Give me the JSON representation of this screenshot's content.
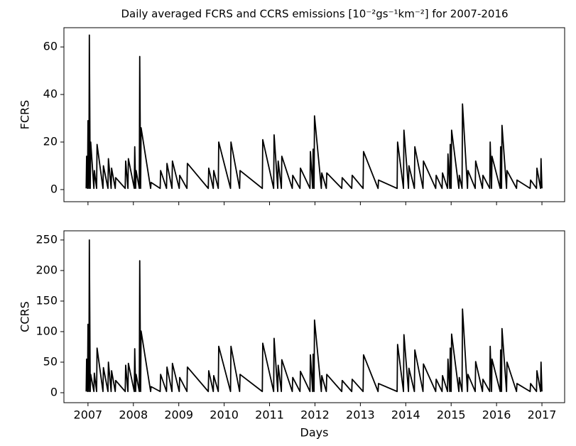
{
  "chart_data": [
    {
      "type": "line",
      "title": "Daily averaged FCRS and CCRS emissions [10⁻²gs⁻¹km⁻²] for 2007-2016",
      "ylabel": "FCRS",
      "color": "#000000",
      "xlim": [
        2006.47,
        2017.5
      ],
      "xticks": [
        2007,
        2008,
        2009,
        2010,
        2011,
        2012,
        2013,
        2014,
        2015,
        2016,
        2017
      ],
      "ylim": [
        -5.1,
        68.1
      ],
      "yticks": [
        0,
        20,
        40,
        60
      ],
      "x": [
        2006.96,
        2006.97,
        2006.99,
        2007.0,
        2007.02,
        2007.03,
        2007.05,
        2007.06,
        2007.13,
        2007.14,
        2007.19,
        2007.2,
        2007.33,
        2007.34,
        2007.44,
        2007.45,
        2007.51,
        2007.52,
        2007.6,
        2007.61,
        2007.82,
        2007.83,
        2007.88,
        2007.89,
        2008.02,
        2008.03,
        2008.05,
        2008.06,
        2008.13,
        2008.14,
        2008.16,
        2008.17,
        2008.38,
        2008.39,
        2008.59,
        2008.6,
        2008.73,
        2008.74,
        2008.85,
        2008.86,
        2009.01,
        2009.02,
        2009.18,
        2009.19,
        2009.65,
        2009.66,
        2009.76,
        2009.77,
        2009.87,
        2009.88,
        2010.14,
        2010.15,
        2010.34,
        2010.35,
        2010.84,
        2010.85,
        2011.09,
        2011.1,
        2011.18,
        2011.19,
        2011.26,
        2011.27,
        2011.5,
        2011.51,
        2011.67,
        2011.68,
        2011.89,
        2011.9,
        2011.95,
        2011.96,
        2011.98,
        2011.99,
        2012.14,
        2012.15,
        2012.25,
        2012.26,
        2012.59,
        2012.6,
        2012.81,
        2012.82,
        2013.06,
        2013.07,
        2013.39,
        2013.4,
        2013.81,
        2013.82,
        2013.95,
        2013.96,
        2014.06,
        2014.07,
        2014.19,
        2014.2,
        2014.38,
        2014.39,
        2014.66,
        2014.67,
        2014.8,
        2014.81,
        2014.92,
        2014.93,
        2014.97,
        2014.98,
        2015.0,
        2015.01,
        2015.17,
        2015.18,
        2015.24,
        2015.25,
        2015.36,
        2015.37,
        2015.53,
        2015.54,
        2015.69,
        2015.7,
        2015.85,
        2015.86,
        2015.89,
        2015.9,
        2016.08,
        2016.09,
        2016.11,
        2016.12,
        2016.22,
        2016.23,
        2016.44,
        2016.45,
        2016.74,
        2016.75,
        2016.88,
        2016.89,
        2016.97,
        2016.98,
        2017.0
      ],
      "values": [
        0.5,
        14,
        0.5,
        29,
        0.5,
        65,
        0.5,
        20,
        0.5,
        8,
        0.5,
        19,
        0.5,
        10,
        0.5,
        13,
        0.5,
        9,
        0.5,
        5,
        0.5,
        12,
        0.5,
        13,
        0.5,
        18,
        0.5,
        8,
        0.5,
        56,
        0.5,
        26,
        0.5,
        3,
        0.5,
        8,
        0.5,
        11,
        0.5,
        12,
        0.5,
        6,
        0.5,
        11,
        0.5,
        9,
        0.5,
        8,
        0.5,
        20,
        0.5,
        20,
        0.5,
        8,
        0.5,
        21,
        0.5,
        23,
        0.5,
        12,
        0.5,
        14,
        0.5,
        6,
        0.5,
        9,
        0.5,
        16,
        0.5,
        17,
        0.5,
        31,
        0.5,
        7,
        0.5,
        7,
        0.5,
        5,
        0.5,
        6,
        0.5,
        16,
        0.5,
        4,
        0.5,
        20,
        0.5,
        25,
        0.5,
        10,
        0.5,
        18,
        0.5,
        12,
        0.5,
        6,
        0.5,
        7,
        0.5,
        15,
        0.5,
        19,
        0.5,
        25,
        0.5,
        6,
        0.5,
        36,
        0.5,
        8,
        0.5,
        12,
        0.5,
        6,
        0.5,
        20,
        0.5,
        14,
        0.5,
        18,
        0.5,
        27,
        0.5,
        8,
        0.5,
        4,
        0.5,
        4,
        0.5,
        9,
        0.5,
        13,
        0.5
      ]
    },
    {
      "type": "line",
      "xlabel": "Days",
      "ylabel": "CCRS",
      "color": "#000000",
      "xlim": [
        2006.47,
        2017.5
      ],
      "xticks": [
        2007,
        2008,
        2009,
        2010,
        2011,
        2012,
        2013,
        2014,
        2015,
        2016,
        2017
      ],
      "ylim": [
        -16.3,
        265
      ],
      "yticks": [
        0,
        50,
        100,
        150,
        200,
        250
      ],
      "x": [
        2006.96,
        2006.97,
        2006.99,
        2007.0,
        2007.02,
        2007.03,
        2007.05,
        2007.06,
        2007.13,
        2007.14,
        2007.19,
        2007.2,
        2007.33,
        2007.34,
        2007.44,
        2007.45,
        2007.51,
        2007.52,
        2007.6,
        2007.61,
        2007.82,
        2007.83,
        2007.88,
        2007.89,
        2008.02,
        2008.03,
        2008.05,
        2008.06,
        2008.13,
        2008.14,
        2008.16,
        2008.17,
        2008.38,
        2008.39,
        2008.59,
        2008.6,
        2008.73,
        2008.74,
        2008.85,
        2008.86,
        2009.01,
        2009.02,
        2009.18,
        2009.19,
        2009.65,
        2009.66,
        2009.76,
        2009.77,
        2009.87,
        2009.88,
        2010.14,
        2010.15,
        2010.34,
        2010.35,
        2010.84,
        2010.85,
        2011.09,
        2011.1,
        2011.18,
        2011.19,
        2011.26,
        2011.27,
        2011.5,
        2011.51,
        2011.67,
        2011.68,
        2011.89,
        2011.9,
        2011.95,
        2011.96,
        2011.98,
        2011.99,
        2012.14,
        2012.15,
        2012.25,
        2012.26,
        2012.59,
        2012.6,
        2012.81,
        2012.82,
        2013.06,
        2013.07,
        2013.39,
        2013.4,
        2013.81,
        2013.82,
        2013.95,
        2013.96,
        2014.06,
        2014.07,
        2014.19,
        2014.2,
        2014.38,
        2014.39,
        2014.66,
        2014.67,
        2014.8,
        2014.81,
        2014.92,
        2014.93,
        2014.97,
        2014.98,
        2015.0,
        2015.01,
        2015.17,
        2015.18,
        2015.24,
        2015.25,
        2015.36,
        2015.37,
        2015.53,
        2015.54,
        2015.69,
        2015.7,
        2015.85,
        2015.86,
        2015.89,
        2015.9,
        2016.08,
        2016.09,
        2016.11,
        2016.12,
        2016.22,
        2016.23,
        2016.44,
        2016.45,
        2016.74,
        2016.75,
        2016.88,
        2016.89,
        2016.97,
        2016.98,
        2017.0
      ],
      "values": [
        2,
        55,
        2,
        112,
        2,
        250,
        2,
        30,
        2,
        32,
        2,
        73,
        2,
        41,
        2,
        50,
        2,
        36,
        2,
        20,
        2,
        45,
        2,
        48,
        2,
        72,
        2,
        30,
        2,
        216,
        2,
        101,
        2,
        10,
        2,
        30,
        2,
        42,
        2,
        48,
        2,
        25,
        2,
        42,
        2,
        36,
        2,
        28,
        2,
        76,
        2,
        76,
        2,
        30,
        2,
        81,
        2,
        89,
        2,
        45,
        2,
        54,
        2,
        25,
        2,
        35,
        2,
        62,
        2,
        63,
        2,
        119,
        2,
        28,
        2,
        30,
        2,
        20,
        2,
        22,
        2,
        62,
        2,
        15,
        2,
        79,
        2,
        95,
        2,
        40,
        2,
        70,
        2,
        47,
        2,
        22,
        2,
        28,
        2,
        55,
        2,
        73,
        2,
        96,
        2,
        25,
        2,
        137,
        2,
        30,
        2,
        51,
        2,
        22,
        2,
        76,
        2,
        55,
        2,
        70,
        2,
        105,
        2,
        50,
        2,
        15,
        2,
        15,
        2,
        36,
        2,
        50,
        2
      ]
    }
  ]
}
